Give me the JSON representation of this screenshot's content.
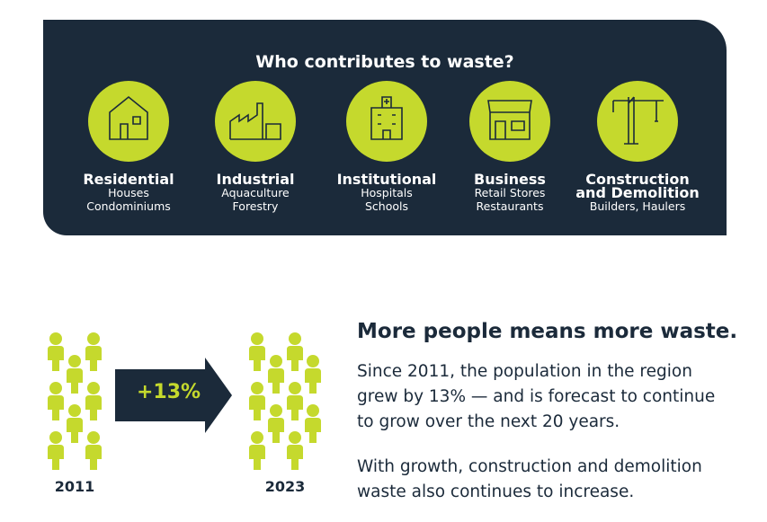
{
  "panel": {
    "title": "Who contributes to waste?",
    "sectors": [
      {
        "name": "Residential",
        "details": [
          "Houses",
          "Condominiums"
        ]
      },
      {
        "name": "Industrial",
        "details": [
          "Aquaculture",
          "Forestry"
        ]
      },
      {
        "name": "Institutional",
        "details": [
          "Hospitals",
          "Schools"
        ]
      },
      {
        "name": "Business",
        "details": [
          "Retail Stores",
          "Restaurants"
        ]
      },
      {
        "name": "Construction and Demolition",
        "details": [
          "Builders, Haulers"
        ]
      }
    ]
  },
  "growth": {
    "year_start": "2011",
    "change": "+13%",
    "year_end": "2023"
  },
  "text": {
    "heading": "More people means more waste.",
    "paragraphs": [
      "Since 2011, the population in the region grew by 13% — and is forecast to continue to grow over the next 20 years.",
      "With growth, construction and demolition waste also continues to increase."
    ]
  }
}
